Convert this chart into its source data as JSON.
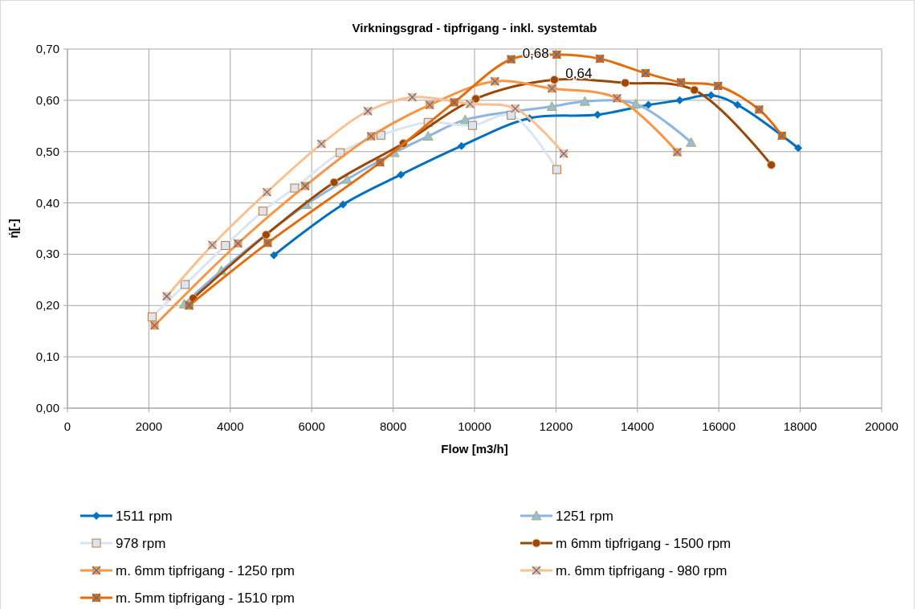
{
  "chart_data": {
    "type": "line",
    "title": "Virkningsgrad - tipfrigang - inkl. systemtab",
    "xlabel": "Flow [m3/h]",
    "ylabel": "ή[-]",
    "xlim": [
      0,
      20000
    ],
    "xticks": [
      0,
      2000,
      4000,
      6000,
      8000,
      10000,
      12000,
      14000,
      16000,
      18000,
      20000
    ],
    "ylim": [
      0,
      0.7
    ],
    "yticks": [
      {
        "value": 0,
        "label": "0,00"
      },
      {
        "value": 0.1,
        "label": "0,10"
      },
      {
        "value": 0.2,
        "label": "0,20"
      },
      {
        "value": 0.3,
        "label": "0,30"
      },
      {
        "value": 0.4,
        "label": "0,40"
      },
      {
        "value": 0.5,
        "label": "0,50"
      },
      {
        "value": 0.6,
        "label": "0,60"
      },
      {
        "value": 0.7,
        "label": "0,70"
      }
    ],
    "grid": true,
    "legend": "bottom",
    "series": [
      {
        "name": "1511 rpm",
        "color": "#0070c0",
        "marker": "diamond",
        "x": [
          5070,
          6770,
          8190,
          9680,
          11350,
          13020,
          14270,
          15040,
          15810,
          16460,
          17950
        ],
        "values": [
          0.298,
          0.397,
          0.455,
          0.511,
          0.565,
          0.572,
          0.591,
          0.6,
          0.61,
          0.591,
          0.507
        ]
      },
      {
        "name": "1251 rpm",
        "color": "#8eb4e3",
        "marker": "triangle",
        "x": [
          2870,
          3780,
          5870,
          6870,
          8030,
          8860,
          9770,
          11900,
          12710,
          13960,
          15320
        ],
        "values": [
          0.203,
          0.268,
          0.397,
          0.446,
          0.498,
          0.53,
          0.562,
          0.588,
          0.598,
          0.593,
          0.518
        ]
      },
      {
        "name": "978 rpm",
        "color": "#dbe5f1",
        "marker": "square",
        "x": [
          2080,
          2890,
          3880,
          4800,
          5580,
          6700,
          7700,
          8860,
          9950,
          10900,
          12020
        ],
        "values": [
          0.178,
          0.241,
          0.317,
          0.384,
          0.429,
          0.498,
          0.532,
          0.557,
          0.551,
          0.571,
          0.465
        ]
      },
      {
        "name": "m 6mm tipfrigang - 1500 rpm",
        "color": "#984807",
        "marker": "circle",
        "x": [
          3090,
          4880,
          6550,
          8250,
          10030,
          11960,
          13700,
          15400,
          17290
        ],
        "values": [
          0.214,
          0.338,
          0.44,
          0.516,
          0.603,
          0.64,
          0.634,
          0.62,
          0.474
        ],
        "value_labels": [
          null,
          null,
          null,
          null,
          null,
          "0,64",
          null,
          null,
          null
        ]
      },
      {
        "name": "m. 6mm tipfrigang - 1250 rpm",
        "color": "#f79646",
        "marker": "square",
        "x": [
          2140,
          4190,
          5840,
          7460,
          8900,
          10500,
          11900,
          13500,
          14980
        ],
        "values": [
          0.161,
          0.321,
          0.433,
          0.53,
          0.591,
          0.637,
          0.623,
          0.604,
          0.499
        ]
      },
      {
        "name": "m. 6mm tipfrigang - 980 rpm",
        "color": "#fac090",
        "marker": "square",
        "x": [
          2440,
          3560,
          4900,
          6240,
          7380,
          8470,
          9890,
          11000,
          12190
        ],
        "values": [
          0.218,
          0.318,
          0.421,
          0.515,
          0.579,
          0.606,
          0.593,
          0.584,
          0.496
        ]
      },
      {
        "name": "m. 5mm tipfrigang - 1510 rpm",
        "color": "#e46c0a",
        "marker": "square",
        "x": [
          2990,
          4920,
          7680,
          9500,
          10900,
          12020,
          13080,
          14200,
          15070,
          15980,
          16990,
          17550
        ],
        "values": [
          0.2,
          0.322,
          0.479,
          0.596,
          0.68,
          0.689,
          0.681,
          0.653,
          0.635,
          0.628,
          0.582,
          0.531
        ],
        "value_labels": [
          null,
          null,
          null,
          null,
          "0,68",
          null,
          null,
          null,
          null,
          null,
          null,
          null
        ]
      }
    ]
  }
}
